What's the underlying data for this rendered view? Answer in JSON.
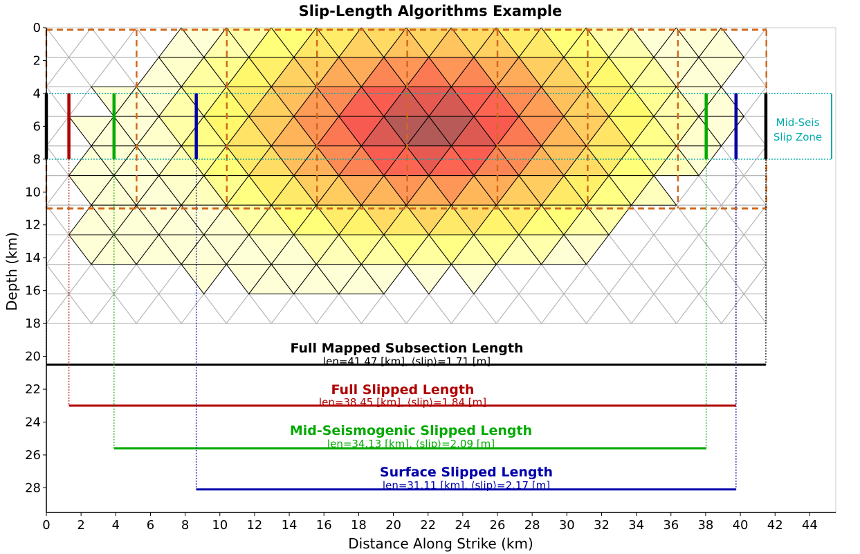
{
  "chart_data": {
    "type": "heatmap",
    "title": "Slip-Length Algorithms Example",
    "xlabel": "Distance Along Strike (km)",
    "ylabel": "Depth (km)",
    "xlim": [
      0,
      45.5
    ],
    "ylim": [
      29.5,
      0
    ],
    "y_inverted": true,
    "xticks": [
      "0",
      "2",
      "4",
      "6",
      "8",
      "10",
      "12",
      "14",
      "16",
      "18",
      "20",
      "22",
      "24",
      "26",
      "28",
      "30",
      "32",
      "34",
      "36",
      "38",
      "40",
      "42",
      "44"
    ],
    "yticks": [
      "0",
      "2",
      "4",
      "6",
      "8",
      "10",
      "12",
      "14",
      "16",
      "18",
      "20",
      "22",
      "24",
      "26",
      "28"
    ],
    "grid": false,
    "colors": {
      "mapped": "#000000",
      "full": "#b00000",
      "mid": "#00aa00",
      "surface": "#0000aa",
      "zone": "#00aaaa",
      "subsection_box": "#d2691e",
      "mesh": "#b4b4b4"
    },
    "subsection_boundaries_km": [
      0,
      5.2,
      10.4,
      15.6,
      20.8,
      26.0,
      31.2,
      36.4,
      41.5
    ],
    "subsection_depth_km": [
      0,
      11
    ],
    "mesh": {
      "x_max_km": 41.5,
      "depth_max_km": 18,
      "row_height_km": 1.8
    },
    "slip_patch": {
      "surface_extent_km": [
        8.7,
        39.8
      ],
      "peak_x_km": 22,
      "peak_depth_km": 6,
      "extent_at_depth": [
        {
          "depth": 0,
          "x0": 8.7,
          "x1": 39.8
        },
        {
          "depth": 2.7,
          "x0": 5.2,
          "x1": 39.8
        },
        {
          "depth": 6,
          "x0": 1.3,
          "x1": 39.8
        },
        {
          "depth": 9,
          "x0": 1.3,
          "x1": 36.4
        },
        {
          "depth": 12,
          "x0": 1.3,
          "x1": 33.7
        },
        {
          "depth": 14.5,
          "x0": 2.6,
          "x1": 31
        },
        {
          "depth": 16,
          "x0": 14.5,
          "x1": 17
        }
      ]
    },
    "mid_seismogenic_zone": {
      "label_line1": "Mid-Seis",
      "label_line2": "Slip Zone",
      "depth_km": [
        4,
        8
      ]
    },
    "lengths": [
      {
        "key": "mapped",
        "title": "Full Mapped Subsection Length",
        "stats": "len=41.47 [km],  ⟨slip⟩=1.71 [m]",
        "x0": 0,
        "x1": 41.47,
        "y": 20.5,
        "bar_x": [
          0,
          41.47
        ]
      },
      {
        "key": "full",
        "title": "Full Slipped Length",
        "stats": "len=38.45 [km],  ⟨slip⟩=1.84 [m]",
        "x0": 1.3,
        "x1": 39.75,
        "y": 23,
        "bar_x": [
          1.3,
          39.75
        ]
      },
      {
        "key": "mid",
        "title": "Mid-Seismogenic Slipped Length",
        "stats": "len=34.13 [km],  ⟨slip⟩=2.09 [m]",
        "x0": 3.9,
        "x1": 38.03,
        "y": 25.6,
        "bar_x": [
          3.9,
          38.03
        ]
      },
      {
        "key": "surface",
        "title": "Surface Slipped Length",
        "stats": "len=31.11 [km],  ⟨slip⟩=2.17 [m]",
        "x0": 8.64,
        "x1": 39.75,
        "y": 28.1,
        "bar_x": [
          8.64,
          39.75
        ]
      }
    ]
  }
}
